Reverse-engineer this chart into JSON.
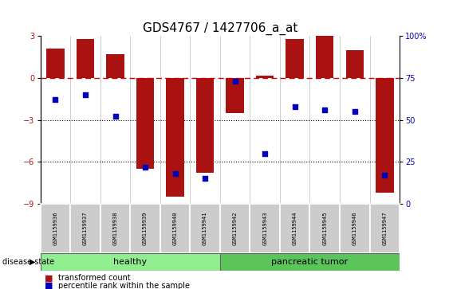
{
  "title": "GDS4767 / 1427706_a_at",
  "samples": [
    "GSM1159936",
    "GSM1159937",
    "GSM1159938",
    "GSM1159939",
    "GSM1159940",
    "GSM1159941",
    "GSM1159942",
    "GSM1159943",
    "GSM1159944",
    "GSM1159945",
    "GSM1159946",
    "GSM1159947"
  ],
  "bar_values": [
    2.1,
    2.8,
    1.7,
    -6.5,
    -8.5,
    -6.8,
    -2.5,
    0.15,
    2.8,
    3.0,
    2.0,
    -8.2
  ],
  "dot_values": [
    62,
    65,
    52,
    22,
    18,
    15,
    73,
    30,
    58,
    56,
    55,
    17
  ],
  "ylim_left": [
    -9,
    3
  ],
  "ylim_right": [
    0,
    100
  ],
  "yticks_left": [
    -9,
    -6,
    -3,
    0,
    3
  ],
  "yticks_right": [
    0,
    25,
    50,
    75,
    100
  ],
  "bar_color": "#aa1111",
  "dot_color": "#0000bb",
  "dashed_line_color": "#cc0000",
  "dotted_line_color": "#000000",
  "healthy_group": [
    0,
    1,
    2,
    3,
    4,
    5
  ],
  "tumor_group": [
    6,
    7,
    8,
    9,
    10,
    11
  ],
  "healthy_label": "healthy",
  "tumor_label": "pancreatic tumor",
  "group_box_color_healthy": "#90ee90",
  "group_box_color_tumor": "#5bc45b",
  "disease_state_label": "disease state",
  "legend_bar_label": "transformed count",
  "legend_dot_label": "percentile rank within the sample",
  "title_fontsize": 11,
  "tick_fontsize": 7,
  "sample_fontsize": 5,
  "group_fontsize": 8,
  "legend_fontsize": 7
}
